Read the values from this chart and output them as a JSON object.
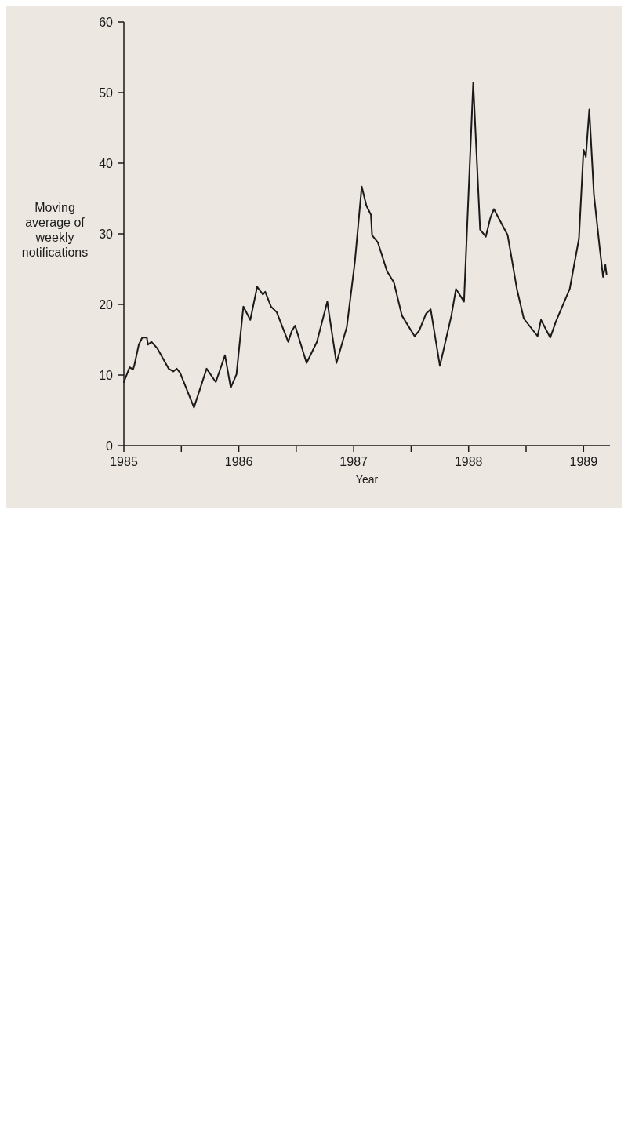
{
  "chart_data": {
    "type": "line",
    "xlabel": "Year",
    "ylabel": "Moving average of weekly notifications",
    "xlim": [
      1985,
      1989.23
    ],
    "ylim": [
      0,
      60
    ],
    "xticks": [
      1985,
      {
        "value": 1985.5,
        "label": null
      },
      1986,
      {
        "value": 1986.5,
        "label": null
      },
      1987,
      {
        "value": 1987.5,
        "label": null
      },
      1988,
      {
        "value": 1988.5,
        "label": null
      },
      1989
    ],
    "yticks": [
      0,
      10,
      20,
      30,
      40,
      50,
      60
    ],
    "grid": false,
    "legend": false,
    "marker": "none",
    "line_style": "solid",
    "series": [
      {
        "color": "#1a1a1a",
        "x": [
          1985.0,
          1985.05,
          1985.08,
          1985.09,
          1985.13,
          1985.16,
          1985.2,
          1985.21,
          1985.24,
          1985.29,
          1985.39,
          1985.43,
          1985.46,
          1985.49,
          1985.61,
          1985.72,
          1985.8,
          1985.88,
          1985.93,
          1985.98,
          1986.04,
          1986.1,
          1986.16,
          1986.21,
          1986.23,
          1986.28,
          1986.33,
          1986.43,
          1986.46,
          1986.49,
          1986.59,
          1986.68,
          1986.77,
          1986.85,
          1986.94,
          1987.01,
          1987.07,
          1987.11,
          1987.15,
          1987.16,
          1987.21,
          1987.29,
          1987.35,
          1987.42,
          1987.53,
          1987.57,
          1987.63,
          1987.67,
          1987.75,
          1987.85,
          1987.89,
          1987.96,
          1988.04,
          1988.1,
          1988.15,
          1988.19,
          1988.22,
          1988.34,
          1988.42,
          1988.48,
          1988.6,
          1988.63,
          1988.71,
          1988.76,
          1988.88,
          1988.96,
          1989.0,
          1989.02,
          1989.05,
          1989.09,
          1989.14,
          1989.17,
          1989.19,
          1989.2
        ],
        "values": [
          9.0,
          11.1,
          10.8,
          11.3,
          14.3,
          15.3,
          15.3,
          14.3,
          14.7,
          13.8,
          10.9,
          10.5,
          10.9,
          10.3,
          5.4,
          10.9,
          9.0,
          12.8,
          8.2,
          10.1,
          19.7,
          17.8,
          22.5,
          21.4,
          21.8,
          19.7,
          18.9,
          14.7,
          16.2,
          17.0,
          11.7,
          14.7,
          20.4,
          11.7,
          16.8,
          26.0,
          36.7,
          34.0,
          32.7,
          29.8,
          28.8,
          24.7,
          23.1,
          18.4,
          15.5,
          16.3,
          18.7,
          19.3,
          11.3,
          18.4,
          22.2,
          20.4,
          51.4,
          30.6,
          29.6,
          32.3,
          33.5,
          29.8,
          22.2,
          18.0,
          15.5,
          17.8,
          15.3,
          17.6,
          22.2,
          29.3,
          41.9,
          40.9,
          47.6,
          35.6,
          28.1,
          23.9,
          25.6,
          24.3
        ]
      }
    ]
  }
}
